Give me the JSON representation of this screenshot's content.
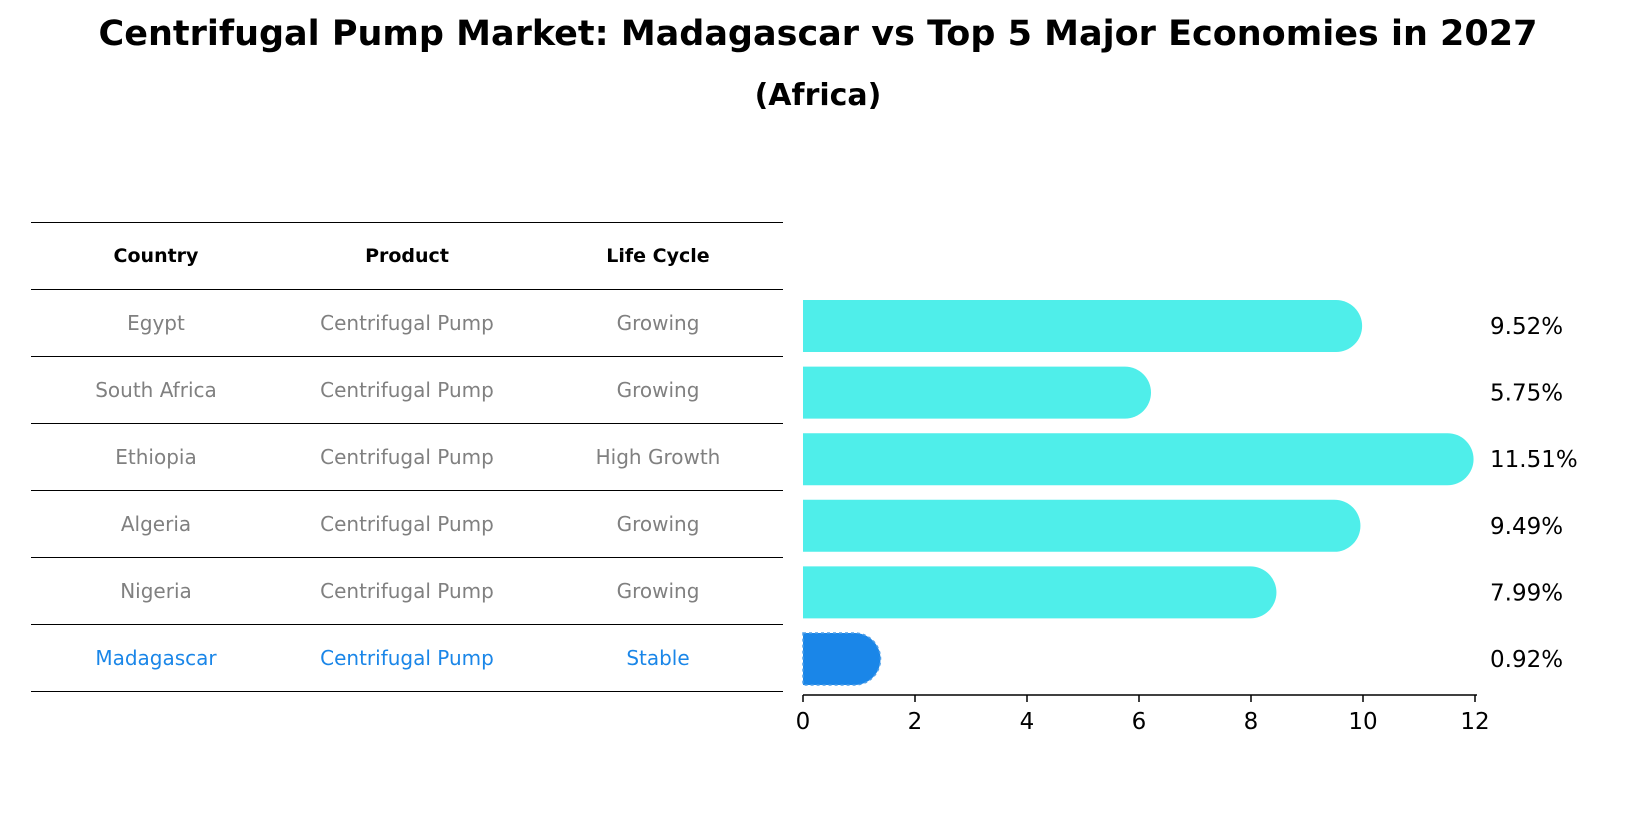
{
  "title": "Centrifugal Pump Market: Madagascar vs Top 5 Major Economies in 2027",
  "subtitle": "(Africa)",
  "colors": {
    "bar": "#4FEEEA",
    "highlight": "#1A86E8",
    "muted_text": "#808080"
  },
  "table": {
    "headers": [
      "Country",
      "Product",
      "Life Cycle"
    ],
    "rows": [
      {
        "country": "Egypt",
        "product": "Centrifugal Pump",
        "life_cycle": "Growing"
      },
      {
        "country": "South Africa",
        "product": "Centrifugal Pump",
        "life_cycle": "Growing"
      },
      {
        "country": "Ethiopia",
        "product": "Centrifugal Pump",
        "life_cycle": "High Growth"
      },
      {
        "country": "Algeria",
        "product": "Centrifugal Pump",
        "life_cycle": "Growing"
      },
      {
        "country": "Nigeria",
        "product": "Centrifugal Pump",
        "life_cycle": "Growing"
      },
      {
        "country": "Madagascar",
        "product": "Centrifugal Pump",
        "life_cycle": "Stable"
      }
    ]
  },
  "chart_data": {
    "type": "bar",
    "orientation": "horizontal",
    "categories": [
      "Egypt",
      "South Africa",
      "Ethiopia",
      "Algeria",
      "Nigeria",
      "Madagascar"
    ],
    "values": [
      9.52,
      5.75,
      11.51,
      9.49,
      7.99,
      0.92
    ],
    "value_labels": [
      "9.52%",
      "5.75%",
      "11.51%",
      "9.49%",
      "7.99%",
      "0.92%"
    ],
    "highlight": "Madagascar",
    "xlim": [
      0,
      12
    ],
    "xticks": [
      0,
      2,
      4,
      6,
      8,
      10,
      12
    ],
    "xlabel": "",
    "ylabel": "",
    "grid": false
  }
}
